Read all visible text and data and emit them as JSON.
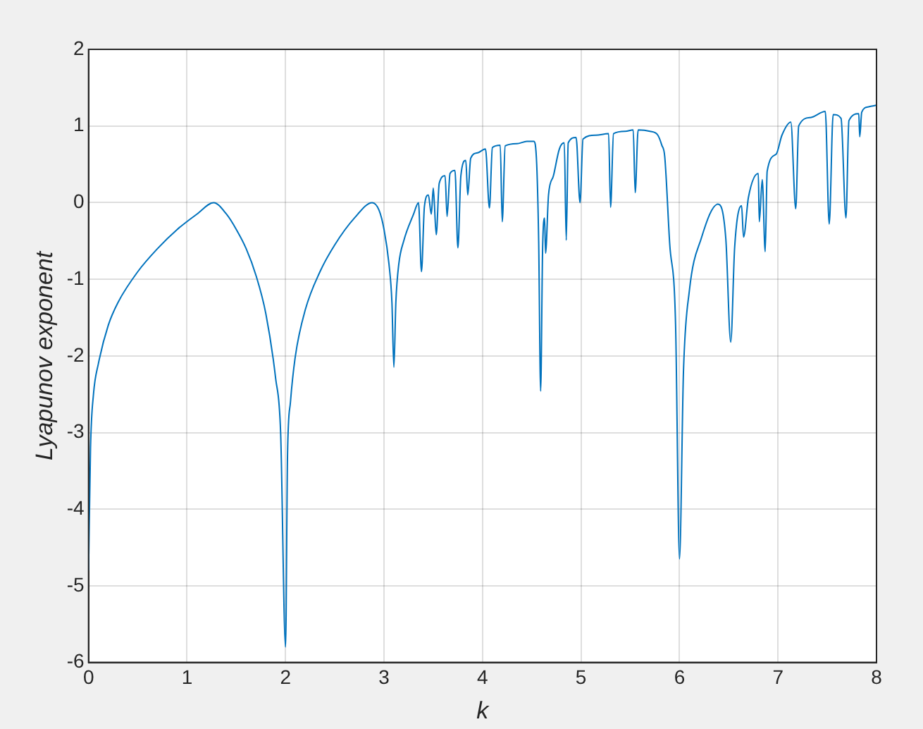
{
  "chart_data": {
    "type": "line",
    "xlabel": "k",
    "ylabel": "Lyapunov exponent",
    "xlim": [
      0,
      8
    ],
    "xticks": [
      0,
      1,
      2,
      3,
      4,
      5,
      6,
      7,
      8
    ],
    "ylim": [
      -6,
      2
    ],
    "yticks": [
      -6,
      -5,
      -4,
      -3,
      -2,
      -1,
      0,
      1,
      2
    ],
    "grid": true,
    "legend": false,
    "marker": "none",
    "line_style": "solid",
    "series": [
      {
        "color": "#0072bd",
        "x": [
          0,
          0.02,
          0.05,
          0.1,
          0.2,
          0.3,
          0.5,
          0.7,
          0.9,
          1.1,
          1.27,
          1.4,
          1.5,
          1.6,
          1.7,
          1.8,
          1.9,
          1.95,
          2.0,
          2.02,
          2.05,
          2.1,
          2.2,
          2.35,
          2.5,
          2.7,
          2.88,
          2.95,
          3.0,
          3.05,
          3.08,
          3.1,
          3.12,
          3.15,
          3.2,
          3.3,
          3.35,
          3.38,
          3.41,
          3.45,
          3.48,
          3.5,
          3.53,
          3.56,
          3.62,
          3.64,
          3.67,
          3.72,
          3.75,
          3.78,
          3.83,
          3.85,
          3.88,
          3.95,
          4.03,
          4.07,
          4.1,
          4.18,
          4.2,
          4.23,
          4.35,
          4.45,
          4.52,
          4.55,
          4.57,
          4.59,
          4.61,
          4.63,
          4.64,
          4.67,
          4.72,
          4.78,
          4.83,
          4.85,
          4.87,
          4.95,
          4.99,
          5.02,
          5.15,
          5.28,
          5.3,
          5.33,
          5.45,
          5.53,
          5.55,
          5.58,
          5.7,
          5.78,
          5.82,
          5.85,
          5.9,
          5.96,
          6.0,
          6.04,
          6.1,
          6.22,
          6.39,
          6.47,
          6.52,
          6.56,
          6.63,
          6.65,
          6.7,
          6.8,
          6.81,
          6.84,
          6.87,
          6.89,
          6.98,
          7.04,
          7.13,
          7.18,
          7.21,
          7.33,
          7.48,
          7.52,
          7.56,
          7.64,
          7.69,
          7.72,
          7.82,
          7.83,
          7.85,
          7.92,
          8.0
        ],
        "values": [
          -4.8,
          -3.2,
          -2.5,
          -2.1,
          -1.6,
          -1.3,
          -0.9,
          -0.6,
          -0.35,
          -0.15,
          0,
          -0.15,
          -0.35,
          -0.6,
          -0.95,
          -1.45,
          -2.3,
          -3.0,
          -5.8,
          -3.3,
          -2.6,
          -2.0,
          -1.4,
          -0.9,
          -0.55,
          -0.2,
          0,
          -0.1,
          -0.35,
          -0.8,
          -1.3,
          -2.15,
          -1.3,
          -0.8,
          -0.5,
          -0.15,
          0,
          -0.9,
          -0.05,
          0.1,
          -0.15,
          0.19,
          -0.42,
          0.25,
          0.35,
          -0.18,
          0.38,
          0.42,
          -0.59,
          0.35,
          0.55,
          0.1,
          0.58,
          0.65,
          0.7,
          -0.07,
          0.72,
          0.75,
          -0.25,
          0.74,
          0.77,
          0.8,
          0.8,
          0.5,
          -0.5,
          -2.46,
          -0.6,
          -0.2,
          -0.66,
          0.1,
          0.35,
          0.7,
          0.78,
          -0.49,
          0.78,
          0.85,
          0,
          0.83,
          0.88,
          0.9,
          -0.06,
          0.9,
          0.93,
          0.95,
          0.13,
          0.95,
          0.93,
          0.88,
          0.75,
          0.6,
          -0.53,
          -1.59,
          -4.65,
          -2.21,
          -1.15,
          -0.47,
          -0.02,
          -0.47,
          -1.82,
          -0.58,
          -0.04,
          -0.45,
          0.07,
          0.38,
          -0.25,
          0.3,
          -0.64,
          0.41,
          0.63,
          0.88,
          1.05,
          -0.08,
          1.0,
          1.11,
          1.19,
          -0.28,
          1.15,
          1.1,
          -0.2,
          1.07,
          1.16,
          0.86,
          1.18,
          1.25,
          1.27
        ]
      }
    ]
  }
}
